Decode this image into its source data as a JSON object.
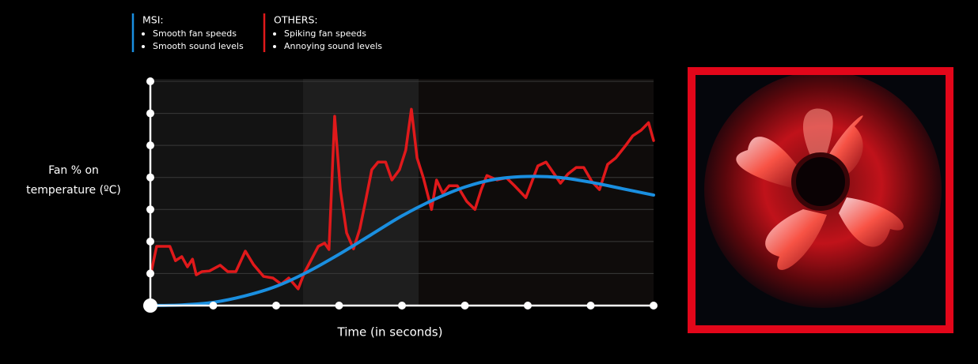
{
  "chart_data": {
    "type": "line",
    "ylabel": [
      "Fan % on",
      "temperature (ºC)"
    ],
    "xlabel": "Time (in seconds)",
    "xlim": [
      0,
      8
    ],
    "xticks": [
      0,
      1,
      2,
      3,
      4,
      5,
      6,
      7,
      8
    ],
    "ylim": [
      0,
      7
    ],
    "yticks": [
      0,
      1,
      2,
      3,
      4,
      5,
      6,
      7
    ],
    "grid": true,
    "series": [
      {
        "name": "MSI:",
        "color": "#1a8fe0",
        "smooth": true,
        "descriptions": [
          "Smooth fan speeds",
          "Smooth sound levels"
        ],
        "x": [
          0,
          0.5,
          1,
          1.5,
          2,
          2.5,
          3,
          3.5,
          4,
          4.5,
          5,
          5.5,
          6,
          6.5,
          7,
          7.5,
          8
        ],
        "values": [
          0,
          0.02,
          0.1,
          0.3,
          0.6,
          1.05,
          1.6,
          2.2,
          2.8,
          3.3,
          3.7,
          3.95,
          4.03,
          4.0,
          3.85,
          3.65,
          3.45
        ]
      },
      {
        "name": "OTHERS:",
        "color": "#e0191b",
        "smooth": false,
        "descriptions": [
          "Spiking fan speeds",
          "Annoying sound levels"
        ],
        "x": [
          0,
          0.1,
          0.31,
          0.4,
          0.5,
          0.59,
          0.67,
          0.73,
          0.82,
          0.94,
          1.11,
          1.23,
          1.36,
          1.51,
          1.64,
          1.8,
          1.95,
          2.08,
          2.2,
          2.35,
          2.45,
          2.55,
          2.67,
          2.77,
          2.84,
          2.93,
          3.02,
          3.12,
          3.23,
          3.33,
          3.42,
          3.52,
          3.62,
          3.74,
          3.84,
          3.96,
          4.06,
          4.15,
          4.24,
          4.34,
          4.47,
          4.55,
          4.65,
          4.75,
          4.88,
          5.03,
          5.16,
          5.26,
          5.35,
          5.51,
          5.66,
          5.79,
          5.97,
          6.16,
          6.29,
          6.42,
          6.52,
          6.64,
          6.77,
          6.89,
          7.02,
          7.14,
          7.27,
          7.4,
          7.55,
          7.67,
          7.8,
          7.92,
          8
        ],
        "values": [
          0.91,
          1.85,
          1.85,
          1.4,
          1.53,
          1.21,
          1.45,
          0.96,
          1.06,
          1.08,
          1.26,
          1.06,
          1.06,
          1.7,
          1.28,
          0.91,
          0.86,
          0.67,
          0.86,
          0.52,
          1.03,
          1.4,
          1.85,
          1.95,
          1.75,
          5.91,
          3.62,
          2.27,
          1.77,
          2.39,
          3.25,
          4.24,
          4.48,
          4.48,
          3.92,
          4.24,
          4.85,
          6.13,
          4.61,
          3.99,
          3.0,
          3.92,
          3.5,
          3.74,
          3.74,
          3.25,
          3.0,
          3.62,
          4.06,
          3.92,
          3.99,
          3.74,
          3.37,
          4.36,
          4.48,
          4.11,
          3.82,
          4.11,
          4.31,
          4.31,
          3.87,
          3.62,
          4.41,
          4.61,
          4.98,
          5.3,
          5.47,
          5.71,
          5.15
        ]
      }
    ]
  }
}
